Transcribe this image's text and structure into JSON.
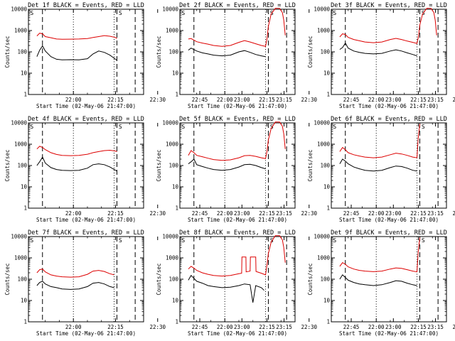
{
  "figure": {
    "start_time_label": "Start Time (02-May-06 21:47:00)",
    "ylabel": "Counts/sec",
    "time_ticks": [
      "22:00",
      "22:15",
      "22:30",
      "22:45",
      "23:00",
      "23:15"
    ],
    "y_ticks": [
      "1",
      "10",
      "100",
      "1000",
      "10000"
    ],
    "series_colors": {
      "events": "#000000",
      "lld": "#dd0000"
    }
  },
  "chart_data": [
    {
      "type": "line",
      "title": "Det 1f BLACK = Events, RED = LLD",
      "xlabel": "Start Time (02-May-06 21:47:00)",
      "ylabel": "Counts/sec",
      "xlim": [
        -3,
        38
      ],
      "ylim": [
        1,
        10000
      ],
      "y_scale": "log",
      "x_unit": "minutes after 21:47:00",
      "vlines_dashed": [
        2,
        28.5,
        35
      ],
      "vlines_dotted": [
        13,
        27.5
      ],
      "corner_tags": [
        "S",
        "S"
      ],
      "series": [
        {
          "name": "Events",
          "color": "#000000",
          "x": [
            0,
            1,
            2,
            3,
            5,
            7,
            9,
            12,
            15,
            18,
            20,
            22,
            24,
            26,
            28,
            28.5
          ],
          "y": [
            60,
            120,
            190,
            110,
            60,
            45,
            42,
            43,
            42,
            48,
            80,
            110,
            95,
            70,
            45,
            40
          ]
        },
        {
          "name": "LLD",
          "color": "#dd0000",
          "x": [
            0,
            1,
            2,
            3,
            5,
            7,
            9,
            12,
            15,
            18,
            20,
            22,
            24,
            26,
            28,
            28.5
          ],
          "y": [
            560,
            750,
            700,
            520,
            460,
            400,
            390,
            395,
            400,
            420,
            470,
            520,
            580,
            540,
            470,
            420
          ]
        }
      ]
    },
    {
      "type": "line",
      "title": "Det 2f BLACK = Events, RED = LLD",
      "xlabel": "Start Time (02-May-06 21:47:00)",
      "ylabel": "Counts/sec",
      "xlim": [
        -3,
        38
      ],
      "ylim": [
        1,
        10000
      ],
      "y_scale": "log",
      "x_unit": "minutes after 21:47:00",
      "vlines_dashed": [
        2,
        28.5,
        35
      ],
      "vlines_dotted": [
        13,
        27.5
      ],
      "corner_tags": [
        "S",
        "S"
      ],
      "series": [
        {
          "name": "Events",
          "color": "#000000",
          "x": [
            0,
            1,
            3,
            5,
            7,
            9,
            12,
            15,
            18,
            20,
            22,
            24,
            26,
            27.5
          ],
          "y": [
            120,
            150,
            110,
            90,
            80,
            70,
            65,
            70,
            100,
            115,
            95,
            75,
            65,
            60
          ]
        },
        {
          "name": "LLD",
          "color": "#dd0000",
          "x": [
            0,
            1,
            3,
            5,
            7,
            9,
            12,
            15,
            18,
            20,
            22,
            24,
            26,
            27.5,
            28,
            28.5,
            29.5,
            31,
            32.5,
            33.5,
            34,
            34.5
          ],
          "y": [
            400,
            420,
            300,
            260,
            230,
            200,
            180,
            200,
            280,
            340,
            290,
            240,
            200,
            180,
            400,
            1600,
            6000,
            11000,
            11000,
            7000,
            3000,
            600
          ]
        }
      ]
    },
    {
      "type": "line",
      "title": "Det 3f BLACK = Events, RED = LLD",
      "xlabel": "Start Time (02-May-06 21:47:00)",
      "ylabel": "Counts/sec",
      "xlim": [
        -3,
        38
      ],
      "ylim": [
        1,
        10000
      ],
      "y_scale": "log",
      "x_unit": "minutes after 21:47:00",
      "vlines_dashed": [
        2,
        28.5,
        35
      ],
      "vlines_dotted": [
        13,
        27.5
      ],
      "corner_tags": [
        "S",
        "S"
      ],
      "series": [
        {
          "name": "Events",
          "color": "#000000",
          "x": [
            0,
            1,
            2,
            3,
            5,
            7,
            9,
            12,
            15,
            18,
            20,
            22,
            24,
            26,
            27.5
          ],
          "y": [
            130,
            160,
            260,
            150,
            110,
            95,
            85,
            80,
            85,
            110,
            125,
            110,
            90,
            75,
            65
          ]
        },
        {
          "name": "LLD",
          "color": "#dd0000",
          "x": [
            0,
            1,
            2,
            3,
            5,
            7,
            9,
            12,
            15,
            18,
            20,
            22,
            24,
            26,
            27.5,
            28,
            28.5,
            29.5,
            31,
            32.5,
            33.5,
            34,
            34.5
          ],
          "y": [
            500,
            700,
            650,
            480,
            380,
            330,
            290,
            270,
            290,
            380,
            430,
            380,
            320,
            280,
            250,
            500,
            1800,
            6000,
            11000,
            11000,
            7000,
            3000,
            600
          ]
        }
      ]
    },
    {
      "type": "line",
      "title": "Det 4f BLACK = Events, RED = LLD",
      "xlabel": "Start Time (02-May-06 21:47:00)",
      "ylabel": "Counts/sec",
      "xlim": [
        -3,
        38
      ],
      "ylim": [
        1,
        10000
      ],
      "y_scale": "log",
      "x_unit": "minutes after 21:47:00",
      "vlines_dashed": [
        2,
        28.5,
        35
      ],
      "vlines_dotted": [
        13,
        27.5
      ],
      "corner_tags": [
        "S",
        "S"
      ],
      "series": [
        {
          "name": "Events",
          "color": "#000000",
          "x": [
            0,
            1,
            2,
            3,
            5,
            7,
            9,
            12,
            15,
            18,
            20,
            22,
            24,
            26,
            28,
            28.5
          ],
          "y": [
            100,
            150,
            250,
            130,
            80,
            65,
            60,
            58,
            60,
            75,
            110,
            120,
            110,
            85,
            60,
            55
          ]
        },
        {
          "name": "LLD",
          "color": "#dd0000",
          "x": [
            0,
            1,
            2,
            3,
            5,
            7,
            9,
            12,
            15,
            18,
            20,
            22,
            24,
            26,
            28,
            28.5
          ],
          "y": [
            600,
            800,
            700,
            560,
            400,
            330,
            300,
            290,
            300,
            340,
            400,
            450,
            500,
            520,
            480,
            450
          ]
        }
      ]
    },
    {
      "type": "line",
      "title": "Det 5f BLACK = Events, RED = LLD",
      "xlabel": "Start Time (02-May-06 21:47:00)",
      "ylabel": "Counts/sec",
      "xlim": [
        -3,
        38
      ],
      "ylim": [
        1,
        10000
      ],
      "y_scale": "log",
      "x_unit": "minutes after 21:47:00",
      "vlines_dashed": [
        2,
        28.5,
        35
      ],
      "vlines_dotted": [
        13,
        27.5
      ],
      "corner_tags": [
        "S",
        "S"
      ],
      "series": [
        {
          "name": "Events",
          "color": "#000000",
          "x": [
            0,
            1,
            2,
            3,
            5,
            7,
            9,
            12,
            15,
            18,
            20,
            22,
            24,
            26,
            27.5
          ],
          "y": [
            120,
            150,
            200,
            110,
            90,
            75,
            65,
            60,
            65,
            85,
            110,
            115,
            100,
            80,
            70
          ]
        },
        {
          "name": "LLD",
          "color": "#dd0000",
          "x": [
            0,
            1,
            2,
            3,
            5,
            7,
            9,
            12,
            15,
            18,
            20,
            22,
            24,
            26,
            27.5,
            28,
            28.5,
            29.5,
            31,
            32.5,
            33.5,
            34,
            34.5
          ],
          "y": [
            300,
            500,
            400,
            300,
            260,
            220,
            190,
            175,
            185,
            230,
            290,
            300,
            270,
            230,
            210,
            450,
            1600,
            5500,
            11000,
            11000,
            7000,
            3000,
            600
          ]
        }
      ]
    },
    {
      "type": "line",
      "title": "Det 6f BLACK = Events, RED = LLD",
      "xlabel": "Start Time (02-May-06 21:47:00)",
      "ylabel": "Counts/sec",
      "xlim": [
        -3,
        38
      ],
      "ylim": [
        1,
        10000
      ],
      "y_scale": "log",
      "x_unit": "minutes after 21:47:00",
      "vlines_dashed": [
        2,
        28.5,
        35
      ],
      "vlines_dotted": [
        13,
        27.5
      ],
      "corner_tags": [
        "S",
        "S"
      ],
      "series": [
        {
          "name": "Events",
          "color": "#000000",
          "x": [
            0,
            1,
            2,
            3,
            5,
            7,
            9,
            12,
            15,
            18,
            20,
            22,
            24,
            26,
            27.5
          ],
          "y": [
            120,
            200,
            160,
            120,
            85,
            70,
            60,
            55,
            60,
            80,
            95,
            90,
            75,
            60,
            55
          ]
        },
        {
          "name": "LLD",
          "color": "#dd0000",
          "x": [
            0,
            1,
            2,
            3,
            5,
            7,
            9,
            12,
            15,
            18,
            20,
            22,
            24,
            26,
            27.5,
            28,
            28.5
          ],
          "y": [
            450,
            700,
            550,
            400,
            320,
            280,
            250,
            230,
            250,
            320,
            380,
            350,
            300,
            250,
            230,
            2500,
            9000
          ]
        }
      ]
    },
    {
      "type": "line",
      "title": "Det 7f BLACK = Events, RED = LLD",
      "xlabel": "Start Time (02-May-06 21:47:00)",
      "ylabel": "Counts/sec",
      "xlim": [
        -3,
        38
      ],
      "ylim": [
        1,
        10000
      ],
      "y_scale": "log",
      "x_unit": "minutes after 21:47:00",
      "vlines_dashed": [
        2,
        28.5,
        35
      ],
      "vlines_dotted": [
        13,
        27.5
      ],
      "corner_tags": [
        "S",
        "S"
      ],
      "series": [
        {
          "name": "Events",
          "color": "#000000",
          "x": [
            0,
            1,
            2,
            3,
            5,
            7,
            9,
            12,
            15,
            18,
            20,
            22,
            24,
            26,
            27.5
          ],
          "y": [
            50,
            70,
            80,
            60,
            45,
            40,
            35,
            33,
            35,
            45,
            65,
            70,
            60,
            45,
            40
          ]
        },
        {
          "name": "LLD",
          "color": "#dd0000",
          "x": [
            0,
            1,
            2,
            3,
            5,
            7,
            9,
            12,
            15,
            18,
            20,
            22,
            24,
            26,
            27.5
          ],
          "y": [
            200,
            280,
            300,
            220,
            160,
            140,
            130,
            125,
            130,
            170,
            240,
            260,
            230,
            180,
            160
          ]
        }
      ]
    },
    {
      "type": "line",
      "title": "Det 8f BLACK = Events, RED = LLD",
      "xlabel": "Start Time (02-May-06 21:47:00)",
      "ylabel": "Counts/sec",
      "xlim": [
        -3,
        38
      ],
      "ylim": [
        1,
        10000
      ],
      "y_scale": "log",
      "x_unit": "minutes after 21:47:00",
      "vlines_dashed": [
        2,
        28.5,
        35
      ],
      "vlines_dotted": [
        13,
        27.5
      ],
      "corner_tags": [
        "S",
        "S"
      ],
      "series": [
        {
          "name": "Events",
          "color": "#000000",
          "x": [
            0,
            1,
            2,
            3,
            5,
            7,
            9,
            12,
            15,
            18,
            20,
            22,
            23,
            24,
            26,
            27
          ],
          "y": [
            90,
            150,
            110,
            80,
            65,
            50,
            45,
            40,
            42,
            50,
            60,
            55,
            8,
            50,
            40,
            30
          ]
        },
        {
          "name": "LLD",
          "color": "#dd0000",
          "x": [
            0,
            1,
            2,
            3,
            5,
            7,
            9,
            12,
            15,
            18,
            19,
            19.1,
            20.5,
            20.6,
            22,
            22.1,
            24,
            24.1,
            26,
            27,
            27.5,
            28,
            28.5,
            29.5,
            31,
            32.5,
            33.5,
            34,
            34.5
          ],
          "y": [
            300,
            400,
            330,
            260,
            200,
            170,
            150,
            140,
            150,
            180,
            190,
            1100,
            1100,
            220,
            240,
            1100,
            1100,
            230,
            190,
            170,
            160,
            450,
            1600,
            5500,
            11000,
            11000,
            7000,
            3000,
            600
          ]
        }
      ]
    },
    {
      "type": "line",
      "title": "Det 9f BLACK = Events, RED = LLD",
      "xlabel": "Start Time (02-May-06 21:47:00)",
      "ylabel": "Counts/sec",
      "xlim": [
        -3,
        38
      ],
      "ylim": [
        1,
        10000
      ],
      "y_scale": "log",
      "x_unit": "minutes after 21:47:00",
      "vlines_dashed": [
        2,
        28.5,
        35
      ],
      "vlines_dotted": [
        13,
        27.5
      ],
      "corner_tags": [
        "S",
        "S"
      ],
      "series": [
        {
          "name": "Events",
          "color": "#000000",
          "x": [
            0,
            1,
            2,
            3,
            5,
            7,
            9,
            12,
            15,
            18,
            20,
            22,
            24,
            26,
            27.5
          ],
          "y": [
            100,
            160,
            120,
            90,
            70,
            60,
            55,
            50,
            55,
            70,
            85,
            80,
            65,
            55,
            50
          ]
        },
        {
          "name": "LLD",
          "color": "#dd0000",
          "x": [
            0,
            1,
            2,
            3,
            5,
            7,
            9,
            12,
            15,
            18,
            20,
            22,
            24,
            26,
            27.5,
            28,
            28.5
          ],
          "y": [
            400,
            600,
            500,
            380,
            300,
            260,
            240,
            225,
            240,
            300,
            340,
            320,
            280,
            240,
            220,
            2500,
            9000
          ]
        }
      ]
    }
  ]
}
